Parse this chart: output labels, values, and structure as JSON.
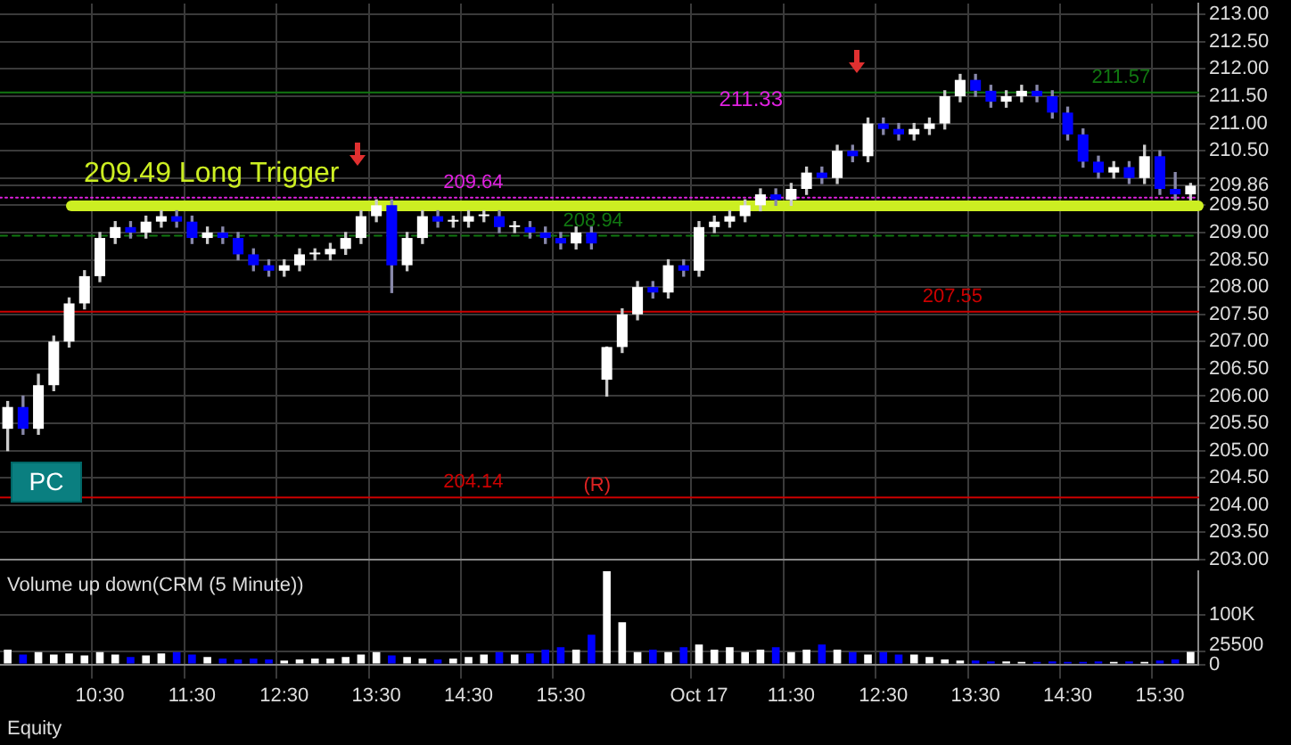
{
  "chart_data": [
    {
      "type": "candlestick",
      "categories": [
        null,
        null,
        null,
        null,
        null,
        null,
        null,
        null,
        null,
        null,
        null,
        null,
        null,
        null,
        null,
        null,
        null,
        null,
        null,
        null,
        null,
        null,
        null,
        null,
        null,
        null,
        null,
        null,
        null,
        null,
        null,
        null,
        null,
        null,
        null,
        null,
        null,
        null,
        null,
        null,
        null,
        null,
        null,
        null,
        null,
        null,
        null,
        null,
        null,
        null,
        null,
        null,
        null,
        null,
        null,
        null,
        null,
        null,
        null,
        null,
        null,
        null,
        null,
        null,
        null,
        null,
        null,
        null,
        null,
        null,
        null,
        null,
        null,
        null,
        null,
        null,
        null,
        null
      ],
      "ohlc": [
        [
          205.4,
          205.9,
          205.0,
          205.8
        ],
        [
          205.8,
          206.0,
          205.3,
          205.4
        ],
        [
          205.4,
          206.4,
          205.3,
          206.2
        ],
        [
          206.2,
          207.1,
          206.1,
          207.0
        ],
        [
          207.0,
          207.8,
          206.9,
          207.7
        ],
        [
          207.7,
          208.3,
          207.6,
          208.2
        ],
        [
          208.2,
          209.0,
          208.1,
          208.9
        ],
        [
          208.9,
          209.2,
          208.8,
          209.1
        ],
        [
          209.1,
          209.2,
          208.9,
          209.0
        ],
        [
          209.0,
          209.3,
          208.9,
          209.2
        ],
        [
          209.2,
          209.4,
          209.1,
          209.3
        ],
        [
          209.3,
          209.4,
          209.1,
          209.2
        ],
        [
          209.2,
          209.3,
          208.8,
          208.9
        ],
        [
          208.9,
          209.1,
          208.8,
          209.0
        ],
        [
          209.0,
          209.1,
          208.8,
          208.9
        ],
        [
          208.9,
          209.0,
          208.5,
          208.6
        ],
        [
          208.6,
          208.7,
          208.3,
          208.4
        ],
        [
          208.4,
          208.5,
          208.2,
          208.3
        ],
        [
          208.3,
          208.5,
          208.2,
          208.4
        ],
        [
          208.4,
          208.7,
          208.3,
          208.6
        ],
        [
          208.6,
          208.7,
          208.5,
          208.6
        ],
        [
          208.6,
          208.8,
          208.5,
          208.7
        ],
        [
          208.7,
          209.0,
          208.6,
          208.9
        ],
        [
          208.9,
          209.4,
          208.8,
          209.3
        ],
        [
          209.3,
          209.6,
          209.2,
          209.5
        ],
        [
          209.5,
          209.6,
          207.9,
          208.4
        ],
        [
          208.4,
          209.0,
          208.3,
          208.9
        ],
        [
          208.9,
          209.4,
          208.8,
          209.3
        ],
        [
          209.3,
          209.4,
          209.1,
          209.2
        ],
        [
          209.2,
          209.3,
          209.1,
          209.2
        ],
        [
          209.2,
          209.4,
          209.1,
          209.3
        ],
        [
          209.3,
          209.4,
          209.2,
          209.3
        ],
        [
          209.3,
          209.4,
          209.0,
          209.1
        ],
        [
          209.1,
          209.2,
          209.0,
          209.1
        ],
        [
          209.1,
          209.2,
          208.9,
          209.0
        ],
        [
          209.0,
          209.1,
          208.8,
          208.9
        ],
        [
          208.9,
          209.0,
          208.7,
          208.8
        ],
        [
          208.8,
          209.1,
          208.7,
          209.0
        ],
        [
          209.0,
          209.1,
          208.7,
          208.8
        ],
        [
          206.3,
          206.9,
          206.0,
          206.9
        ],
        [
          206.9,
          207.6,
          206.8,
          207.5
        ],
        [
          207.5,
          208.1,
          207.4,
          208.0
        ],
        [
          208.0,
          208.1,
          207.8,
          207.9
        ],
        [
          207.9,
          208.5,
          207.8,
          208.4
        ],
        [
          208.4,
          208.5,
          208.2,
          208.3
        ],
        [
          208.3,
          209.2,
          208.2,
          209.1
        ],
        [
          209.1,
          209.3,
          209.0,
          209.2
        ],
        [
          209.2,
          209.4,
          209.1,
          209.3
        ],
        [
          209.3,
          209.6,
          209.2,
          209.5
        ],
        [
          209.5,
          209.8,
          209.4,
          209.7
        ],
        [
          209.7,
          209.8,
          209.5,
          209.6
        ],
        [
          209.6,
          209.9,
          209.5,
          209.8
        ],
        [
          209.8,
          210.2,
          209.7,
          210.1
        ],
        [
          210.1,
          210.2,
          209.9,
          210.0
        ],
        [
          210.0,
          210.6,
          209.9,
          210.5
        ],
        [
          210.5,
          210.6,
          210.3,
          210.4
        ],
        [
          210.4,
          211.1,
          210.3,
          211.0
        ],
        [
          211.0,
          211.1,
          210.8,
          210.9
        ],
        [
          210.9,
          211.0,
          210.7,
          210.8
        ],
        [
          210.8,
          211.0,
          210.7,
          210.9
        ],
        [
          210.9,
          211.1,
          210.8,
          211.0
        ],
        [
          211.0,
          211.6,
          210.9,
          211.5
        ],
        [
          211.5,
          211.9,
          211.4,
          211.8
        ],
        [
          211.8,
          211.9,
          211.5,
          211.6
        ],
        [
          211.6,
          211.7,
          211.3,
          211.4
        ],
        [
          211.4,
          211.6,
          211.3,
          211.5
        ],
        [
          211.5,
          211.7,
          211.4,
          211.6
        ],
        [
          211.6,
          211.7,
          211.4,
          211.5
        ],
        [
          211.5,
          211.6,
          211.1,
          211.2
        ],
        [
          211.2,
          211.3,
          210.7,
          210.8
        ],
        [
          210.8,
          210.9,
          210.2,
          210.3
        ],
        [
          210.3,
          210.4,
          210.0,
          210.1
        ],
        [
          210.1,
          210.3,
          210.0,
          210.2
        ],
        [
          210.2,
          210.3,
          209.9,
          210.0
        ],
        [
          210.0,
          210.6,
          209.9,
          210.4
        ],
        [
          210.4,
          210.5,
          209.7,
          209.8
        ],
        [
          209.8,
          210.1,
          209.6,
          209.7
        ],
        [
          209.7,
          209.9,
          209.6,
          209.86
        ]
      ],
      "colors": [
        "#ffffff",
        "#0000ff",
        "#ffffff",
        "#ffffff",
        "#ffffff",
        "#ffffff",
        "#ffffff",
        "#ffffff",
        "#0000ff",
        "#ffffff",
        "#ffffff",
        "#0000ff",
        "#0000ff",
        "#ffffff",
        "#0000ff",
        "#0000ff",
        "#0000ff",
        "#0000ff",
        "#ffffff",
        "#ffffff",
        "#ffffff",
        "#ffffff",
        "#ffffff",
        "#ffffff",
        "#ffffff",
        "#0000ff",
        "#ffffff",
        "#ffffff",
        "#0000ff",
        "#ffffff",
        "#ffffff",
        "#ffffff",
        "#0000ff",
        "#ffffff",
        "#0000ff",
        "#0000ff",
        "#0000ff",
        "#ffffff",
        "#0000ff",
        "#ffffff",
        "#ffffff",
        "#ffffff",
        "#0000ff",
        "#ffffff",
        "#0000ff",
        "#ffffff",
        "#ffffff",
        "#ffffff",
        "#ffffff",
        "#ffffff",
        "#0000ff",
        "#ffffff",
        "#ffffff",
        "#0000ff",
        "#ffffff",
        "#0000ff",
        "#ffffff",
        "#0000ff",
        "#0000ff",
        "#ffffff",
        "#ffffff",
        "#ffffff",
        "#ffffff",
        "#0000ff",
        "#0000ff",
        "#ffffff",
        "#ffffff",
        "#0000ff",
        "#0000ff",
        "#0000ff",
        "#0000ff",
        "#0000ff",
        "#ffffff",
        "#0000ff",
        "#ffffff",
        "#0000ff",
        "#0000ff",
        "#ffffff"
      ],
      "ylim": [
        203,
        213.2
      ],
      "yticks": [
        {
          "value": 203,
          "label": "203.00"
        },
        {
          "value": 203.5,
          "label": "203.50"
        },
        {
          "value": 204,
          "label": "204.00"
        },
        {
          "value": 204.5,
          "label": "204.50"
        },
        {
          "value": 205,
          "label": "205.00"
        },
        {
          "value": 205.5,
          "label": "205.50"
        },
        {
          "value": 206,
          "label": "206.00"
        },
        {
          "value": 206.5,
          "label": "206.50"
        },
        {
          "value": 207,
          "label": "207.00"
        },
        {
          "value": 207.5,
          "label": "207.50"
        },
        {
          "value": 208,
          "label": "208.00"
        },
        {
          "value": 208.5,
          "label": "208.50"
        },
        {
          "value": 209,
          "label": "209.00"
        },
        {
          "value": 209.5,
          "label": "209.50"
        },
        {
          "value": 209.86,
          "label": "209.86"
        },
        {
          "value": 210,
          "label": null
        },
        {
          "value": 210.5,
          "label": "210.50"
        },
        {
          "value": 211,
          "label": "211.00"
        },
        {
          "value": 211.5,
          "label": "211.50"
        },
        {
          "value": 212,
          "label": "212.00"
        },
        {
          "value": 212.5,
          "label": "212.50"
        },
        {
          "value": 213,
          "label": "213.00"
        }
      ],
      "ref_lines": [
        {
          "axis": "y",
          "value": 209.49,
          "label": "209.49 Long Trigger",
          "color": "#ccee22"
        },
        {
          "axis": "y",
          "value": 209.64,
          "label": "209.64",
          "color": "#e020e0",
          "line_style": "dotted"
        },
        {
          "axis": "y",
          "value": 211.57,
          "label": "211.57",
          "color": "#117711"
        },
        {
          "axis": "y",
          "value": 208.94,
          "label": "208.94",
          "color": "#117711",
          "line_style": "dashed"
        },
        {
          "axis": "y",
          "value": 207.55,
          "label": "207.55",
          "color": "#cc0000"
        },
        {
          "axis": "y",
          "value": 204.14,
          "label": "204.14",
          "color": "#cc0000"
        }
      ],
      "annotations": [
        "211.33",
        "(R)",
        "PC"
      ],
      "grid": true,
      "legend": false,
      "tick_labels": "y"
    },
    {
      "type": "bar",
      "title": "Volume up down(CRM (5 Minute))",
      "categories": [
        null,
        null,
        null,
        null,
        null,
        null,
        "10:30",
        null,
        null,
        null,
        null,
        null,
        "11:30",
        null,
        null,
        null,
        null,
        null,
        "12:30",
        null,
        null,
        null,
        null,
        null,
        "13:30",
        null,
        null,
        null,
        null,
        null,
        "14:30",
        null,
        null,
        null,
        null,
        null,
        "15:30",
        null,
        null,
        null,
        null,
        null,
        null,
        null,
        null,
        "Oct 17",
        null,
        null,
        null,
        null,
        null,
        "11:30",
        null,
        null,
        null,
        null,
        null,
        "12:30",
        null,
        null,
        null,
        null,
        null,
        "13:30",
        null,
        null,
        null,
        null,
        null,
        "14:30",
        null,
        null,
        null,
        null,
        null,
        "15:30",
        null,
        null
      ],
      "values": [
        30000,
        20000,
        25000,
        20000,
        22000,
        18000,
        25000,
        20000,
        15000,
        18000,
        22000,
        25000,
        20000,
        15000,
        12000,
        10000,
        12000,
        10000,
        8000,
        10000,
        12000,
        12000,
        15000,
        20000,
        25000,
        18000,
        15000,
        12000,
        10000,
        12000,
        15000,
        20000,
        25000,
        20000,
        22000,
        30000,
        35000,
        30000,
        60000,
        188000,
        85000,
        25000,
        30000,
        25000,
        35000,
        40000,
        30000,
        35000,
        25000,
        30000,
        35000,
        25000,
        30000,
        40000,
        30000,
        25000,
        20000,
        25000,
        20000,
        20000,
        15000,
        10000,
        8000,
        8000,
        6000,
        6000,
        5000,
        5000,
        6000,
        5000,
        5000,
        6000,
        5000,
        6000,
        5000,
        8000,
        10000,
        25500
      ],
      "colors": [
        "#ffffff",
        "#0000ff",
        "#ffffff",
        "#ffffff",
        "#ffffff",
        "#ffffff",
        "#ffffff",
        "#ffffff",
        "#0000ff",
        "#ffffff",
        "#ffffff",
        "#0000ff",
        "#0000ff",
        "#ffffff",
        "#0000ff",
        "#0000ff",
        "#0000ff",
        "#0000ff",
        "#ffffff",
        "#ffffff",
        "#ffffff",
        "#ffffff",
        "#ffffff",
        "#ffffff",
        "#ffffff",
        "#0000ff",
        "#ffffff",
        "#ffffff",
        "#0000ff",
        "#ffffff",
        "#ffffff",
        "#ffffff",
        "#0000ff",
        "#ffffff",
        "#0000ff",
        "#0000ff",
        "#0000ff",
        "#ffffff",
        "#0000ff",
        "#ffffff",
        "#ffffff",
        "#ffffff",
        "#0000ff",
        "#ffffff",
        "#0000ff",
        "#ffffff",
        "#ffffff",
        "#ffffff",
        "#ffffff",
        "#ffffff",
        "#0000ff",
        "#ffffff",
        "#ffffff",
        "#0000ff",
        "#ffffff",
        "#0000ff",
        "#ffffff",
        "#0000ff",
        "#0000ff",
        "#ffffff",
        "#ffffff",
        "#ffffff",
        "#ffffff",
        "#0000ff",
        "#0000ff",
        "#ffffff",
        "#ffffff",
        "#0000ff",
        "#0000ff",
        "#0000ff",
        "#0000ff",
        "#0000ff",
        "#ffffff",
        "#0000ff",
        "#ffffff",
        "#0000ff",
        "#0000ff",
        "#ffffff"
      ],
      "ylim": [
        0,
        190000
      ],
      "yticks": [
        {
          "value": 0,
          "label": "0"
        },
        {
          "value": 25500,
          "label": "25500"
        },
        {
          "value": 100000,
          "label": "100K"
        }
      ],
      "annotations": [
        "Equity"
      ],
      "grid": true,
      "legend": false
    }
  ]
}
